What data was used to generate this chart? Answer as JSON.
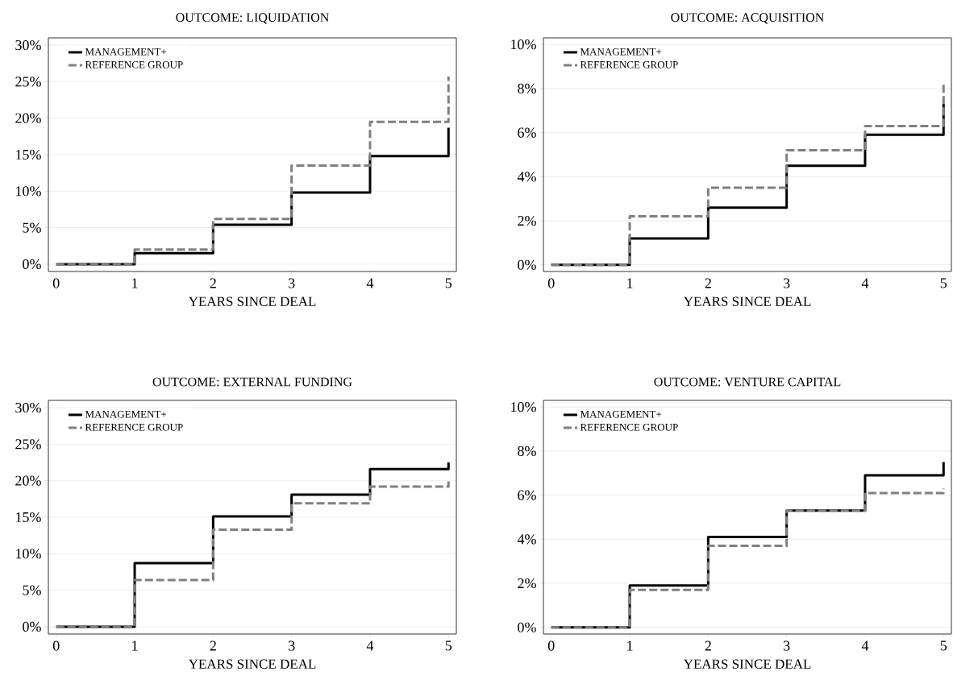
{
  "chart_data": [
    {
      "type": "step",
      "title": "OUTCOME: LIQUIDATION",
      "xlabel": "YEARS SINCE DEAL",
      "x": [
        0,
        1,
        2,
        3,
        4,
        5
      ],
      "xlim": [
        -0.1,
        5.1
      ],
      "xticks": [
        0,
        1,
        2,
        3,
        4,
        5
      ],
      "ylim": [
        -1,
        31
      ],
      "yticks": [
        {
          "value": 0,
          "label": "0%"
        },
        {
          "value": 5,
          "label": "5%"
        },
        {
          "value": 10,
          "label": "10%"
        },
        {
          "value": 15,
          "label": "15%"
        },
        {
          "value": 20,
          "label": "20%"
        },
        {
          "value": 25,
          "label": "25%"
        },
        {
          "value": 30,
          "label": "30%"
        }
      ],
      "grid": "y",
      "legend": "top left",
      "series": [
        {
          "name": "MANAGEMENT+",
          "color": "#000000",
          "line_style": "solid",
          "values": [
            0,
            1.5,
            5.4,
            9.8,
            14.8,
            18.7
          ]
        },
        {
          "name": "REFERENCE GROUP",
          "color": "#808080",
          "line_style": "dashed",
          "values": [
            0,
            2.0,
            6.2,
            13.5,
            19.5,
            25.7
          ]
        }
      ]
    },
    {
      "type": "step",
      "title": "OUTCOME: ACQUISITION",
      "xlabel": "YEARS SINCE DEAL",
      "x": [
        0,
        1,
        2,
        3,
        4,
        5
      ],
      "xlim": [
        -0.1,
        5.1
      ],
      "xticks": [
        0,
        1,
        2,
        3,
        4,
        5
      ],
      "ylim": [
        -0.3,
        10.3
      ],
      "yticks": [
        {
          "value": 0,
          "label": "0%"
        },
        {
          "value": 2,
          "label": "2%"
        },
        {
          "value": 4,
          "label": "4%"
        },
        {
          "value": 6,
          "label": "6%"
        },
        {
          "value": 8,
          "label": "8%"
        },
        {
          "value": 10,
          "label": "10%"
        }
      ],
      "grid": "y",
      "legend": "top left",
      "series": [
        {
          "name": "MANAGEMENT+",
          "color": "#000000",
          "line_style": "solid",
          "values": [
            0,
            1.2,
            2.6,
            4.5,
            5.9,
            7.3
          ]
        },
        {
          "name": "REFERENCE GROUP",
          "color": "#808080",
          "line_style": "dashed",
          "values": [
            0,
            2.2,
            3.5,
            5.2,
            6.3,
            8.3
          ]
        }
      ]
    },
    {
      "type": "step",
      "title": "OUTCOME: EXTERNAL FUNDING",
      "xlabel": "YEARS SINCE DEAL",
      "x": [
        0,
        1,
        2,
        3,
        4,
        5
      ],
      "xlim": [
        -0.1,
        5.1
      ],
      "xticks": [
        0,
        1,
        2,
        3,
        4,
        5
      ],
      "ylim": [
        -1,
        31
      ],
      "yticks": [
        {
          "value": 0,
          "label": "0%"
        },
        {
          "value": 5,
          "label": "5%"
        },
        {
          "value": 10,
          "label": "10%"
        },
        {
          "value": 15,
          "label": "15%"
        },
        {
          "value": 20,
          "label": "20%"
        },
        {
          "value": 25,
          "label": "25%"
        },
        {
          "value": 30,
          "label": "30%"
        }
      ],
      "grid": "y",
      "legend": "top left",
      "series": [
        {
          "name": "MANAGEMENT+",
          "color": "#000000",
          "line_style": "solid",
          "values": [
            0,
            8.7,
            15.1,
            18.1,
            21.6,
            22.5
          ]
        },
        {
          "name": "REFERENCE GROUP",
          "color": "#808080",
          "line_style": "dashed",
          "values": [
            0,
            6.4,
            13.3,
            16.9,
            19.2,
            19.9
          ]
        }
      ]
    },
    {
      "type": "step",
      "title": "OUTCOME: VENTURE CAPITAL",
      "xlabel": "YEARS SINCE DEAL",
      "x": [
        0,
        1,
        2,
        3,
        4,
        5
      ],
      "xlim": [
        -0.1,
        5.1
      ],
      "xticks": [
        0,
        1,
        2,
        3,
        4,
        5
      ],
      "ylim": [
        -0.3,
        10.3
      ],
      "yticks": [
        {
          "value": 0,
          "label": "0%"
        },
        {
          "value": 2,
          "label": "2%"
        },
        {
          "value": 4,
          "label": "4%"
        },
        {
          "value": 6,
          "label": "6%"
        },
        {
          "value": 8,
          "label": "8%"
        },
        {
          "value": 10,
          "label": "10%"
        }
      ],
      "grid": "y",
      "legend": "top left",
      "series": [
        {
          "name": "MANAGEMENT+",
          "color": "#000000",
          "line_style": "solid",
          "values": [
            0,
            1.9,
            4.1,
            5.3,
            6.9,
            7.5
          ]
        },
        {
          "name": "REFERENCE GROUP",
          "color": "#808080",
          "line_style": "dashed",
          "values": [
            0,
            1.7,
            3.7,
            5.3,
            6.1,
            6.3
          ]
        }
      ]
    }
  ]
}
